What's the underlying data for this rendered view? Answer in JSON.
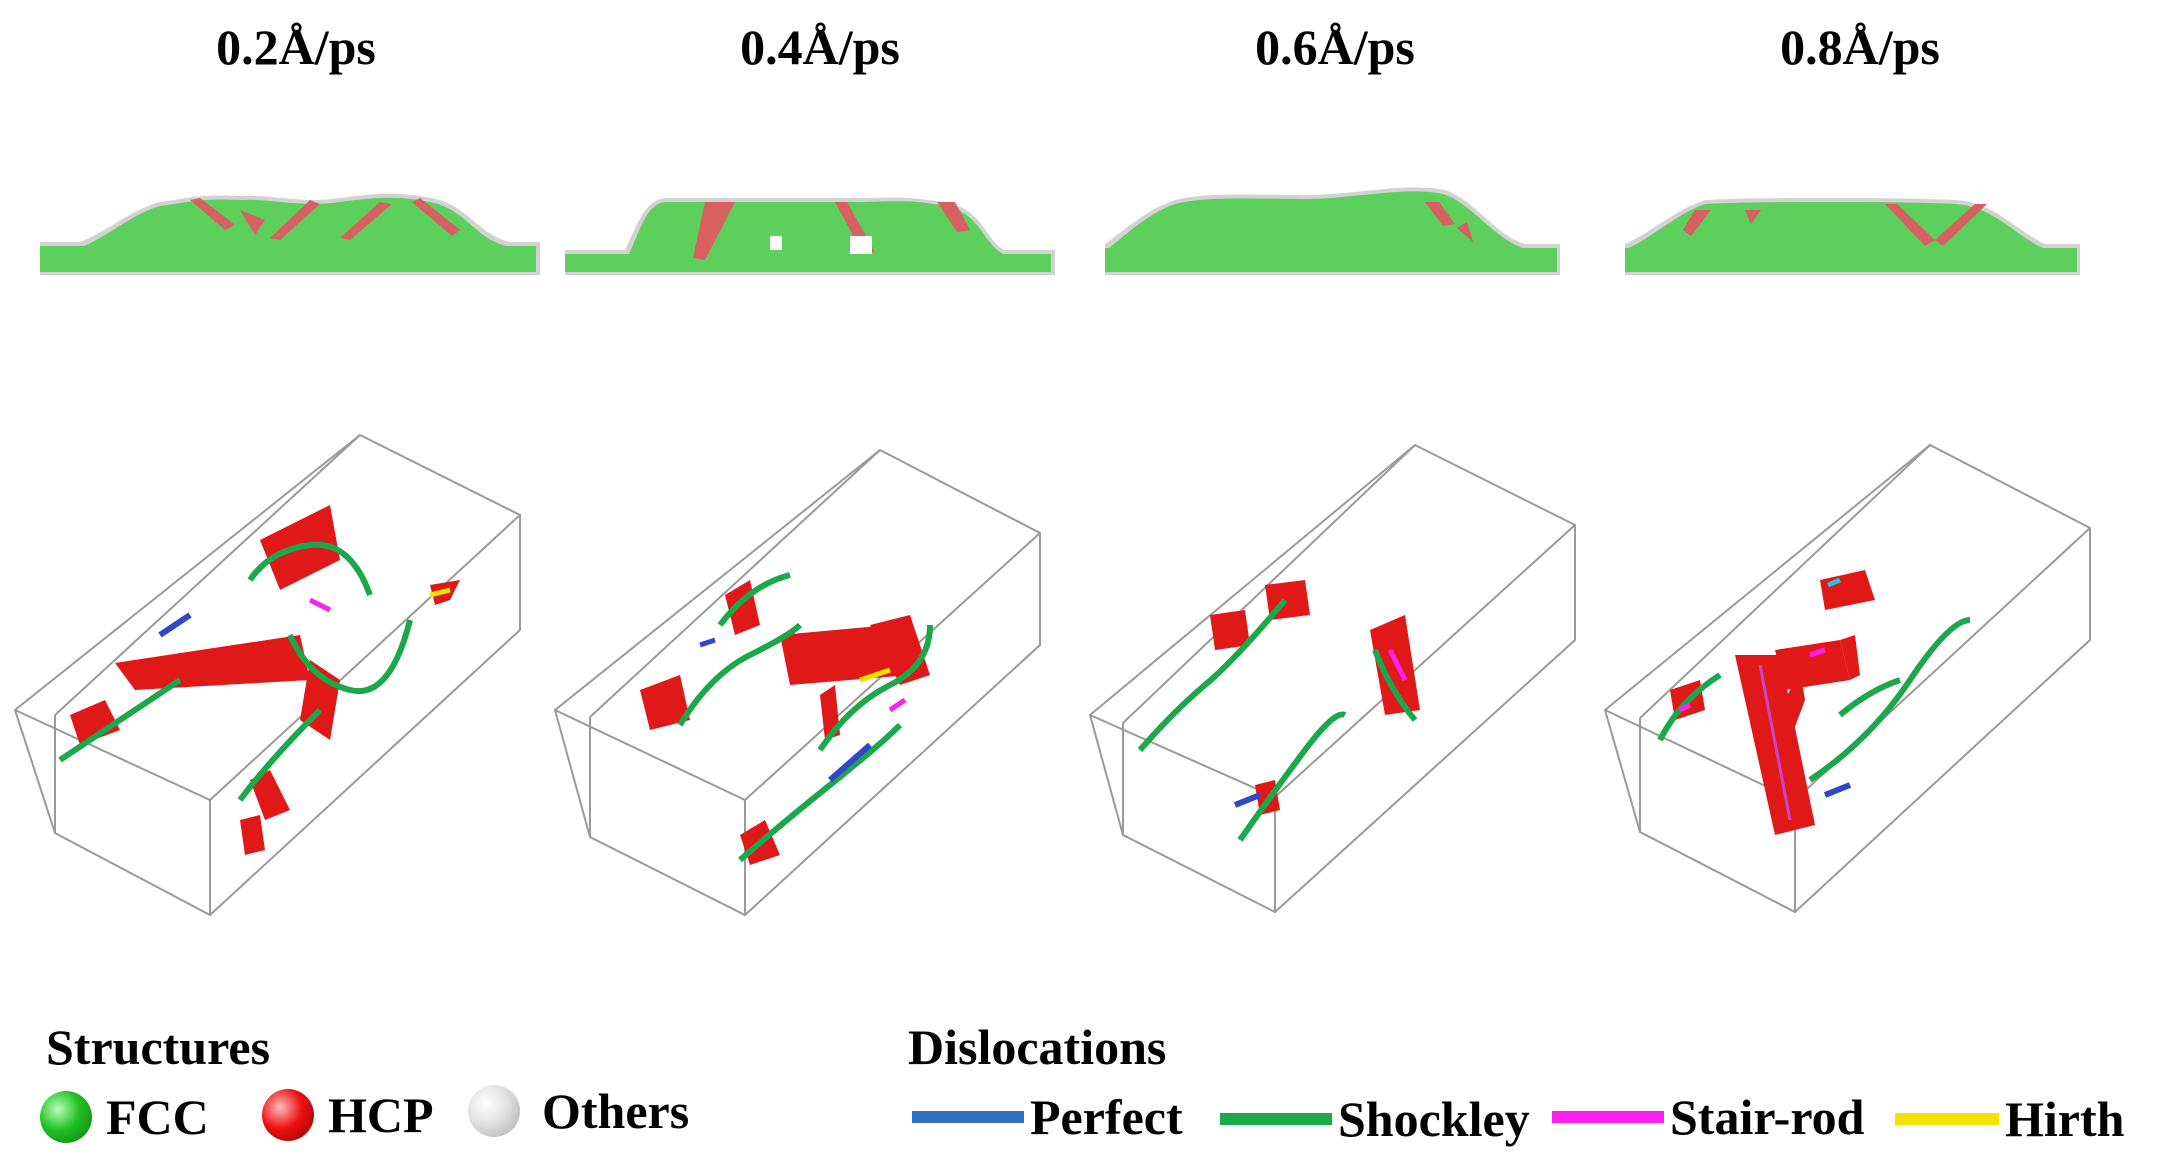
{
  "columns": [
    {
      "title": "0.2Å/ps"
    },
    {
      "title": "0.4Å/ps"
    },
    {
      "title": "0.6Å/ps"
    },
    {
      "title": "0.8Å/ps"
    }
  ],
  "legend": {
    "structures": {
      "heading": "Structures",
      "items": [
        {
          "label": "FCC",
          "color": "#22c022"
        },
        {
          "label": "HCP",
          "color": "#ee1111"
        },
        {
          "label": "Others",
          "color": "#d6d6d6"
        }
      ]
    },
    "dislocations": {
      "heading": "Dislocations",
      "items": [
        {
          "label": "Perfect",
          "color": "#2f6fbf"
        },
        {
          "label": "Shockley",
          "color": "#1aa84a"
        },
        {
          "label": "Stair-rod",
          "color": "#ff22ee"
        },
        {
          "label": "Hirth",
          "color": "#f2e200"
        }
      ]
    }
  },
  "colors": {
    "fcc": "#5ccf5c",
    "hcp": "#e01818",
    "surface": "#cfcfcf",
    "box": "#9a9a9a"
  }
}
